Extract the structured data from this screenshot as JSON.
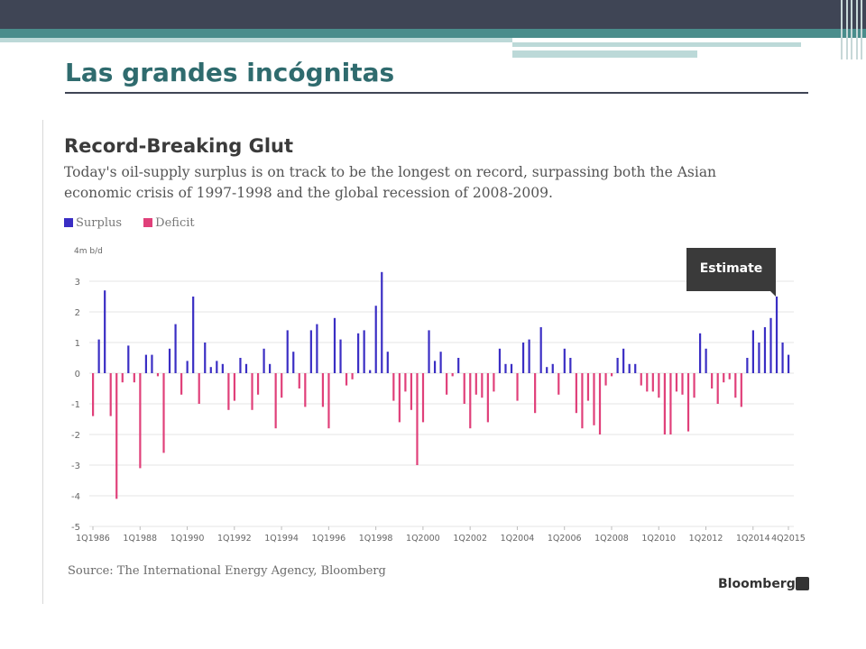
{
  "slide": {
    "title": "Las grandes incógnitas"
  },
  "header": {
    "title": "Record-Breaking Glut",
    "subtitle": "Today's oil-supply surplus is on track to be the longest on record, surpassing both the Asian economic crisis of 1997-1998 and the global recession of 2008-2009."
  },
  "legend": {
    "surplus": "Surplus",
    "deficit": "Deficit"
  },
  "annotation": "Estimate",
  "source": "Source: The International Energy Agency, Bloomberg",
  "brand": "Bloomberg",
  "colors": {
    "surplus": "#3a2ec4",
    "deficit": "#e0407a",
    "grid": "#e4e4e4",
    "axis_text": "#666666"
  },
  "chart_data": {
    "type": "bar",
    "ylabel": "4m b/d",
    "ylim": [
      -5,
      4
    ],
    "y_ticks": [
      -5,
      -4,
      -3,
      -2,
      -1,
      0,
      1,
      2,
      3
    ],
    "x_tick_labels": [
      "1Q1986",
      "1Q1988",
      "1Q1990",
      "1Q1992",
      "1Q1994",
      "1Q1996",
      "1Q1998",
      "1Q2000",
      "1Q2002",
      "1Q2004",
      "1Q2006",
      "1Q2008",
      "1Q2010",
      "1Q2012",
      "1Q2014",
      "4Q2015"
    ],
    "x_start": "1Q1986",
    "x_end": "4Q2015",
    "estimate_from": "4Q2014",
    "values": [
      -1.4,
      1.1,
      2.7,
      -1.4,
      -4.1,
      -0.3,
      0.9,
      -0.3,
      -3.1,
      0.6,
      0.6,
      -0.1,
      -2.6,
      0.8,
      1.6,
      -0.7,
      0.4,
      2.5,
      -1.0,
      1.0,
      0.2,
      0.4,
      0.3,
      -1.2,
      -0.9,
      0.5,
      0.3,
      -1.2,
      -0.7,
      0.8,
      0.3,
      -1.8,
      -0.8,
      1.4,
      0.7,
      -0.5,
      -1.1,
      1.4,
      1.6,
      -1.1,
      -1.8,
      1.8,
      1.1,
      -0.4,
      -0.2,
      1.3,
      1.4,
      0.1,
      2.2,
      3.3,
      0.7,
      -0.9,
      -1.6,
      -0.6,
      -1.2,
      -3.0,
      -1.6,
      1.4,
      0.4,
      0.7,
      -0.7,
      -0.1,
      0.5,
      -1.0,
      -1.8,
      -0.7,
      -0.8,
      -1.6,
      -0.6,
      0.8,
      0.3,
      0.3,
      -0.9,
      1.0,
      1.1,
      -1.3,
      1.5,
      0.2,
      0.3,
      -0.7,
      0.8,
      0.5,
      -1.3,
      -1.8,
      -0.9,
      -1.7,
      -2.0,
      -0.4,
      -0.1,
      0.5,
      0.8,
      0.3,
      0.3,
      -0.4,
      -0.6,
      -0.6,
      -0.8,
      -2.0,
      -2.0,
      -0.6,
      -0.7,
      -1.9,
      -0.8,
      1.3,
      0.8,
      -0.5,
      -1.0,
      -0.3,
      -0.2,
      -0.8,
      -1.1,
      0.5,
      1.4,
      1.0,
      1.5,
      1.8,
      2.5,
      1.0,
      0.6
    ]
  }
}
